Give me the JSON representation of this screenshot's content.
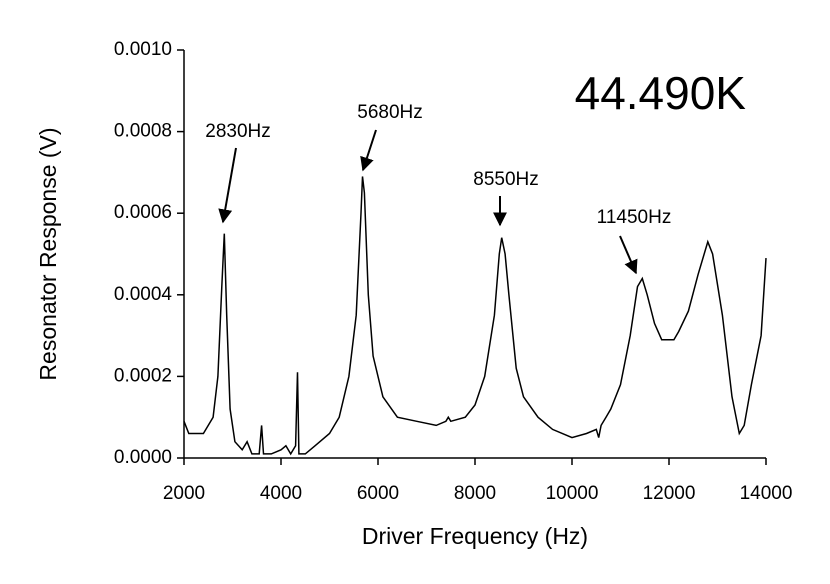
{
  "chart_data": {
    "type": "line",
    "x_label": "Driver Frequency (Hz)",
    "y_label": "Resonator Response (V)",
    "annotations": [
      "2830Hz",
      "5680Hz",
      "8550Hz",
      "11450Hz",
      "44.490K"
    ],
    "xlim": [
      2000,
      14000
    ],
    "xticks": [
      2000,
      4000,
      6000,
      8000,
      10000,
      12000,
      14000
    ],
    "ylim": [
      0,
      0.001
    ],
    "yticks": [
      {
        "value": 0,
        "label": "0.0000"
      },
      {
        "value": 0.0002,
        "label": "0.0002"
      },
      {
        "value": 0.0004,
        "label": "0.0004"
      },
      {
        "value": 0.0006,
        "label": "0.0006"
      },
      {
        "value": 0.0008,
        "label": "0.0008"
      },
      {
        "value": 0.001,
        "label": "0.0010"
      }
    ],
    "series": [
      {
        "color": "#000000",
        "x": [
          2000,
          2100,
          2400,
          2600,
          2700,
          2780,
          2830,
          2880,
          2950,
          3050,
          3200,
          3300,
          3400,
          3550,
          3600,
          3640,
          3800,
          4000,
          4100,
          4200,
          4300,
          4340,
          4370,
          4500,
          4700,
          5000,
          5200,
          5400,
          5550,
          5650,
          5680,
          5720,
          5800,
          5900,
          6100,
          6400,
          6800,
          7200,
          7400,
          7450,
          7500,
          7800,
          8000,
          8200,
          8400,
          8500,
          8550,
          8620,
          8700,
          8850,
          9000,
          9300,
          9600,
          10000,
          10300,
          10500,
          10550,
          10600,
          10700,
          10800,
          11000,
          11200,
          11350,
          11450,
          11550,
          11700,
          11850,
          12100,
          12200,
          12400,
          12600,
          12800,
          12900,
          13100,
          13300,
          13450,
          13550,
          13700,
          13900,
          14000
        ],
        "values": [
          9e-05,
          6e-05,
          6e-05,
          0.0001,
          0.0002,
          0.00042,
          0.00055,
          0.00035,
          0.00012,
          4e-05,
          2e-05,
          4e-05,
          1e-05,
          1e-05,
          8e-05,
          1e-05,
          1e-05,
          2e-05,
          3e-05,
          1e-05,
          3e-05,
          0.00021,
          1e-05,
          1e-05,
          3e-05,
          6e-05,
          0.0001,
          0.0002,
          0.00035,
          0.0006,
          0.00069,
          0.00065,
          0.0004,
          0.00025,
          0.00015,
          0.0001,
          9e-05,
          8e-05,
          9e-05,
          0.0001,
          9e-05,
          0.0001,
          0.00013,
          0.0002,
          0.00035,
          0.0005,
          0.00054,
          0.0005,
          0.0004,
          0.00022,
          0.00015,
          0.0001,
          7e-05,
          5e-05,
          6e-05,
          7e-05,
          5e-05,
          8e-05,
          0.0001,
          0.00012,
          0.00018,
          0.0003,
          0.00042,
          0.00044,
          0.0004,
          0.00033,
          0.00029,
          0.00029,
          0.00031,
          0.00036,
          0.00045,
          0.00053,
          0.0005,
          0.00035,
          0.00015,
          6e-05,
          8e-05,
          0.00018,
          0.0003,
          0.00049
        ]
      }
    ]
  }
}
